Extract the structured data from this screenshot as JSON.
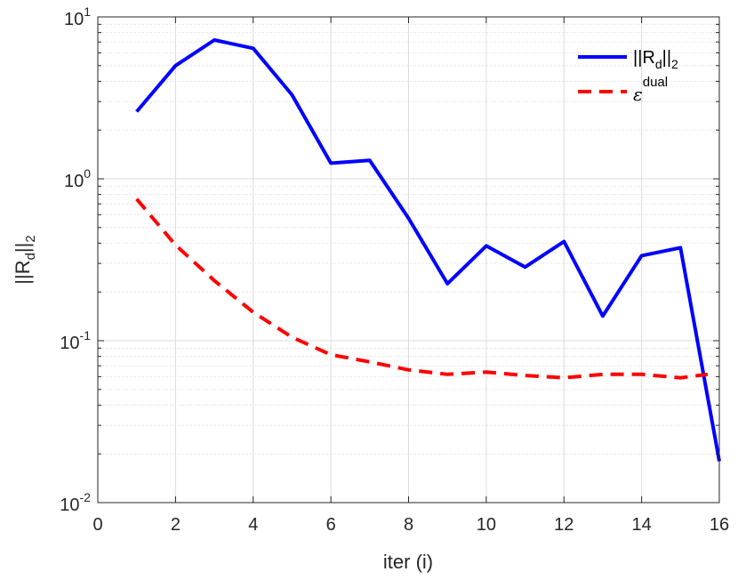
{
  "chart_data": {
    "type": "line",
    "title": "",
    "xlabel": "iter (i)",
    "ylabel": "||R_d||_2",
    "xlim": [
      0,
      16
    ],
    "ylim": [
      0.01,
      10
    ],
    "yscale": "log",
    "grid": true,
    "legend_position": "top-right",
    "x_ticks": [
      "0",
      "2",
      "4",
      "6",
      "8",
      "10",
      "12",
      "14",
      "16"
    ],
    "y_ticks": [
      {
        "base": "10",
        "exp": "-2"
      },
      {
        "base": "10",
        "exp": "-1"
      },
      {
        "base": "10",
        "exp": "0"
      },
      {
        "base": "10",
        "exp": "1"
      }
    ],
    "series": [
      {
        "name": "||R_d||_2",
        "color": "#0000ff",
        "style": "solid",
        "x": [
          1,
          2,
          3,
          4,
          5,
          6,
          7,
          8,
          9,
          10,
          11,
          12,
          13,
          14,
          15,
          16
        ],
        "values": [
          2.6,
          5.0,
          7.2,
          6.4,
          3.3,
          1.25,
          1.3,
          0.57,
          0.225,
          0.385,
          0.285,
          0.41,
          0.142,
          0.335,
          0.375,
          0.018
        ]
      },
      {
        "name": "epsilon^dual",
        "color": "#ff0000",
        "style": "dashed",
        "x": [
          1,
          2,
          3,
          4,
          5,
          6,
          7,
          8,
          9,
          10,
          11,
          12,
          13,
          14,
          15,
          15.7
        ],
        "values": [
          0.75,
          0.39,
          0.235,
          0.15,
          0.105,
          0.082,
          0.074,
          0.066,
          0.062,
          0.064,
          0.061,
          0.059,
          0.062,
          0.062,
          0.059,
          0.062
        ]
      }
    ],
    "legend": {
      "entry1": {
        "base": "||R",
        "sub": "d",
        "tail": "||",
        "sub2": "2"
      },
      "entry2": {
        "symbol": "ε",
        "sup": "dual"
      }
    },
    "ylabel_parts": {
      "base": "||R",
      "sub": "d",
      "tail": "||",
      "sub2": "2"
    },
    "xlabel_text": "iter (i)"
  }
}
